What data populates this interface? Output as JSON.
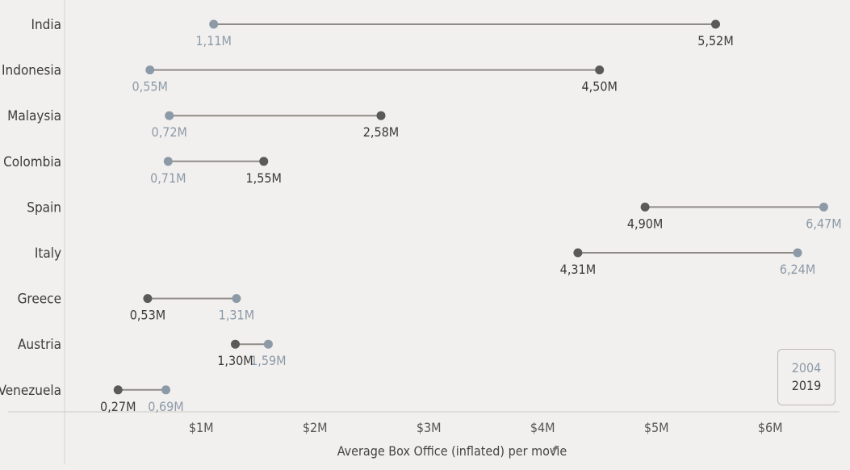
{
  "chart_data": {
    "type": "dumbbell",
    "xlabel": "Average Box Office (inflated) per movie",
    "xlabel_icon": "pin-icon",
    "xlim": [
      -0.2,
      6.7
    ],
    "x_ticks": [
      {
        "value": 1,
        "label": "$1M"
      },
      {
        "value": 2,
        "label": "$2M"
      },
      {
        "value": 3,
        "label": "$3M"
      },
      {
        "value": 4,
        "label": "$4M"
      },
      {
        "value": 5,
        "label": "$5M"
      },
      {
        "value": 6,
        "label": "$6M"
      }
    ],
    "series": [
      {
        "name": "2004",
        "color": "#8c9aa8"
      },
      {
        "name": "2019",
        "color": "#5a5a58"
      }
    ],
    "rows": [
      {
        "country": "India",
        "v2004": 1.11,
        "l2004": "1,11M",
        "v2019": 5.52,
        "l2019": "5,52M"
      },
      {
        "country": "Indonesia",
        "v2004": 0.55,
        "l2004": "0,55M",
        "v2019": 4.5,
        "l2019": "4,50M"
      },
      {
        "country": "Malaysia",
        "v2004": 0.72,
        "l2004": "0,72M",
        "v2019": 2.58,
        "l2019": "2,58M"
      },
      {
        "country": "Colombia",
        "v2004": 0.71,
        "l2004": "0,71M",
        "v2019": 1.55,
        "l2019": "1,55M"
      },
      {
        "country": "Spain",
        "v2004": 6.47,
        "l2004": "6,47M",
        "v2019": 4.9,
        "l2019": "4,90M"
      },
      {
        "country": "Italy",
        "v2004": 6.24,
        "l2004": "6,24M",
        "v2019": 4.31,
        "l2019": "4,31M"
      },
      {
        "country": "Greece",
        "v2004": 1.31,
        "l2004": "1,31M",
        "v2019": 0.53,
        "l2019": "0,53M"
      },
      {
        "country": "Austria",
        "v2004": 1.59,
        "l2004": "1,59M",
        "v2019": 1.3,
        "l2019": "1,30M"
      },
      {
        "country": "Venezuela",
        "v2004": 0.69,
        "l2004": "0,69M",
        "v2019": 0.27,
        "l2019": "0,27M"
      }
    ],
    "connector_color": "#8f8c88",
    "grid": false,
    "legend_position": "bottom-right"
  },
  "legend": {
    "items": [
      "2004",
      "2019"
    ]
  }
}
